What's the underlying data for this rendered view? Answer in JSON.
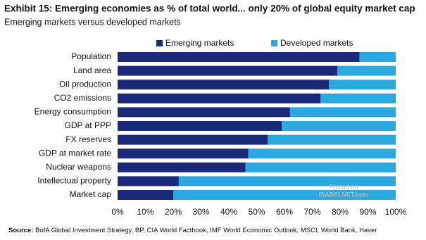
{
  "chart_data": {
    "type": "stacked-bar-horizontal",
    "title": "Exhibit 15: Emerging economies as % of total world... only 20% of global equity market cap",
    "subtitle": "Emerging markets versus developed markets",
    "categories": [
      "Population",
      "Land area",
      "Oil production",
      "CO2 emissions",
      "Energy consumption",
      "GDP at PPP",
      "FX reserves",
      "GDP at market rate",
      "Nuclear weapons",
      "Intellectual property",
      "Market cap"
    ],
    "series": [
      {
        "name": "Emerging markets",
        "color": "#1b2a78",
        "values": [
          87,
          79,
          76,
          73,
          62,
          59,
          54,
          47,
          46,
          22,
          20
        ]
      },
      {
        "name": "Developed markets",
        "color": "#2aa8e0",
        "values": [
          13,
          21,
          24,
          27,
          38,
          41,
          46,
          53,
          54,
          78,
          80
        ]
      }
    ],
    "xlim": [
      0,
      100
    ],
    "xticks": [
      {
        "value": 0,
        "label": "0%"
      },
      {
        "value": 10,
        "label": "10%"
      },
      {
        "value": 20,
        "label": "20%"
      },
      {
        "value": 30,
        "label": "30%"
      },
      {
        "value": 40,
        "label": "40%"
      },
      {
        "value": 50,
        "label": "50%"
      },
      {
        "value": 60,
        "label": "60%"
      },
      {
        "value": 70,
        "label": "70%"
      },
      {
        "value": 80,
        "label": "80%"
      },
      {
        "value": 90,
        "label": "90%"
      },
      {
        "value": 100,
        "label": "100%"
      }
    ],
    "legend_position": "top",
    "source_label": "Source:",
    "source": "BofA Global Investment Strategy, BP, CIA World Factbook, IMF World Economic Outlook, MSCI, World Bank, Haver",
    "watermark": [
      "Posted on",
      "ISABELNET.com"
    ]
  }
}
